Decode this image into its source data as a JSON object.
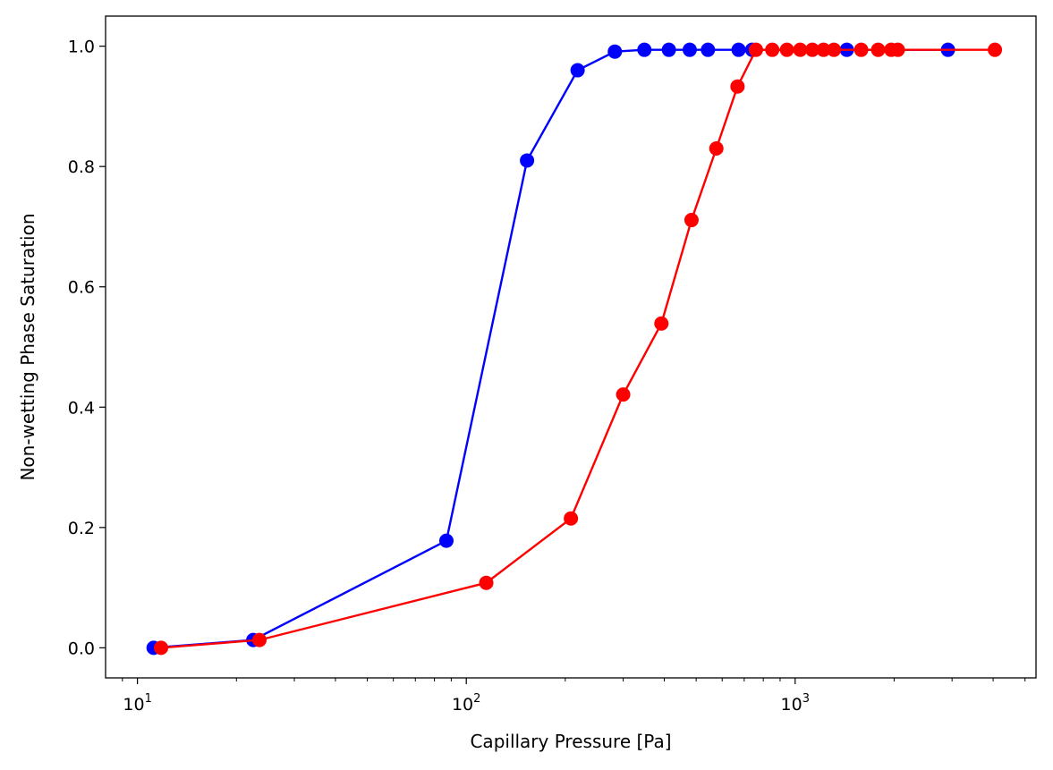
{
  "chart_data": {
    "type": "line",
    "xscale": "log",
    "xlabel": "Capillary Pressure [Pa]",
    "ylabel": "Non-wetting Phase Saturation",
    "xlim": [
      8.0,
      5400
    ],
    "ylim": [
      -0.05,
      1.05
    ],
    "xticks": [
      {
        "value": 10,
        "base": "10",
        "exp": "1"
      },
      {
        "value": 100,
        "base": "10",
        "exp": "2"
      },
      {
        "value": 1000,
        "base": "10",
        "exp": "3"
      }
    ],
    "yticks": [
      {
        "value": 0.0,
        "label": "0.0"
      },
      {
        "value": 0.2,
        "label": "0.2"
      },
      {
        "value": 0.4,
        "label": "0.4"
      },
      {
        "value": 0.6,
        "label": "0.6"
      },
      {
        "value": 0.8,
        "label": "0.8"
      },
      {
        "value": 1.0,
        "label": "1.0"
      }
    ],
    "grid": false,
    "legend": "none",
    "series": [
      {
        "color": "#0000ff",
        "points": [
          [
            11.2,
            0.0
          ],
          [
            22.5,
            0.013
          ],
          [
            87,
            0.178
          ],
          [
            153,
            0.81
          ],
          [
            218,
            0.96
          ],
          [
            283,
            0.991
          ],
          [
            348,
            0.994
          ],
          [
            413,
            0.994
          ],
          [
            478,
            0.994
          ],
          [
            543,
            0.994
          ],
          [
            673,
            0.994
          ],
          [
            740,
            0.994
          ],
          [
            1436,
            0.994
          ],
          [
            2915,
            0.994
          ]
        ]
      },
      {
        "color": "#ff0000",
        "points": [
          [
            11.8,
            0.0
          ],
          [
            23.5,
            0.013
          ],
          [
            115,
            0.108
          ],
          [
            208,
            0.215
          ],
          [
            300,
            0.421
          ],
          [
            392,
            0.539
          ],
          [
            484,
            0.711
          ],
          [
            576,
            0.83
          ],
          [
            668,
            0.933
          ],
          [
            760,
            0.994
          ],
          [
            852,
            0.994
          ],
          [
            944,
            0.994
          ],
          [
            1036,
            0.994
          ],
          [
            1128,
            0.994
          ],
          [
            1220,
            0.994
          ],
          [
            1312,
            0.994
          ],
          [
            1588,
            0.994
          ],
          [
            1788,
            0.994
          ],
          [
            1960,
            0.994
          ],
          [
            2052,
            0.994
          ],
          [
            4050,
            0.994
          ]
        ]
      }
    ]
  }
}
